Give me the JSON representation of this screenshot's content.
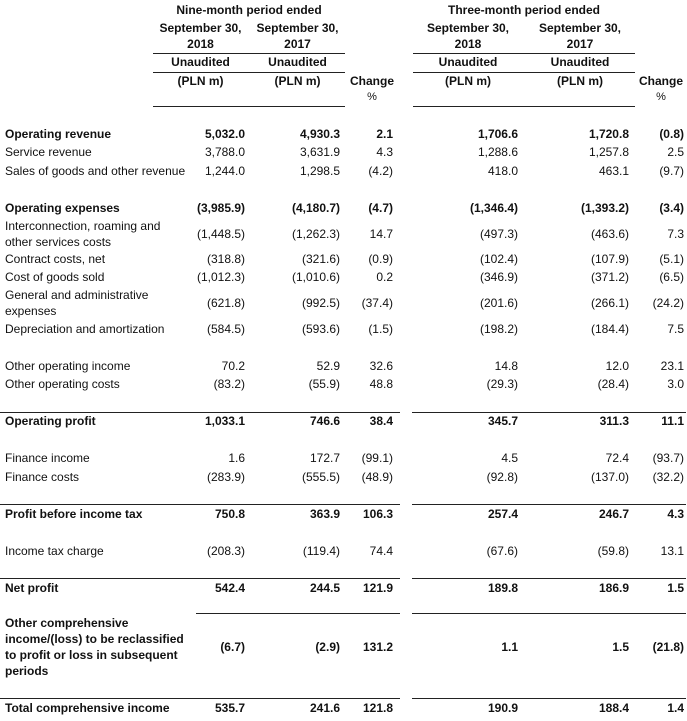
{
  "header": {
    "nine_month": {
      "title": "Nine-month period ended",
      "col_2018": "September 30,\n2018",
      "col_2017": "September 30,\n2017",
      "audit": "Unaudited",
      "unit": "(PLN m)",
      "change": "Change",
      "change_unit": "%"
    },
    "three_month": {
      "title": "Three-month period ended",
      "col_2018": "September 30,\n2018",
      "col_2017": "September 30,\n2017",
      "audit": "Unaudited",
      "unit": "(PLN m)",
      "change": "Change",
      "change_unit": "%"
    }
  },
  "rows": [
    {
      "label": "Operating revenue",
      "bold": true,
      "values": [
        "5,032.0",
        "4,930.3",
        "2.1",
        "1,706.6",
        "1,720.8",
        "(0.8)"
      ]
    },
    {
      "label": "Service revenue",
      "bold": false,
      "values": [
        "3,788.0",
        "3,631.9",
        "4.3",
        "1,288.6",
        "1,257.8",
        "2.5"
      ]
    },
    {
      "label": "Sales of goods and other revenue",
      "bold": false,
      "values": [
        "1,244.0",
        "1,298.5",
        "(4.2)",
        "418.0",
        "463.1",
        "(9.7)"
      ]
    },
    {
      "label": "Operating expenses",
      "bold": true,
      "values": [
        "(3,985.9)",
        "(4,180.7)",
        "(4.7)",
        "(1,346.4)",
        "(1,393.2)",
        "(3.4)"
      ]
    },
    {
      "label": "Interconnection, roaming and\nother services costs",
      "bold": false,
      "values": [
        "(1,448.5)",
        "(1,262.3)",
        "14.7",
        "(497.3)",
        "(463.6)",
        "7.3"
      ]
    },
    {
      "label": "Contract costs, net",
      "bold": false,
      "values": [
        "(318.8)",
        "(321.6)",
        "(0.9)",
        "(102.4)",
        "(107.9)",
        "(5.1)"
      ]
    },
    {
      "label": "Cost of goods sold",
      "bold": false,
      "values": [
        "(1,012.3)",
        "(1,010.6)",
        "0.2",
        "(346.9)",
        "(371.2)",
        "(6.5)"
      ]
    },
    {
      "label": "General and administrative\nexpenses",
      "bold": false,
      "values": [
        "(621.8)",
        "(992.5)",
        "(37.4)",
        "(201.6)",
        "(266.1)",
        "(24.2)"
      ]
    },
    {
      "label": "Depreciation and amortization",
      "bold": false,
      "values": [
        "(584.5)",
        "(593.6)",
        "(1.5)",
        "(198.2)",
        "(184.4)",
        "7.5"
      ]
    },
    {
      "label": "Other operating income",
      "bold": false,
      "values": [
        "70.2",
        "52.9",
        "32.6",
        "14.8",
        "12.0",
        "23.1"
      ]
    },
    {
      "label": "Other operating costs",
      "bold": false,
      "values": [
        "(83.2)",
        "(55.9)",
        "48.8",
        "(29.3)",
        "(28.4)",
        "3.0"
      ]
    },
    {
      "label": "Operating profit",
      "bold": true,
      "values": [
        "1,033.1",
        "746.6",
        "38.4",
        "345.7",
        "311.3",
        "11.1"
      ]
    },
    {
      "label": "Finance income",
      "bold": false,
      "values": [
        "1.6",
        "172.7",
        "(99.1)",
        "4.5",
        "72.4",
        "(93.7)"
      ]
    },
    {
      "label": "Finance costs",
      "bold": false,
      "values": [
        "(283.9)",
        "(555.5)",
        "(48.9)",
        "(92.8)",
        "(137.0)",
        "(32.2)"
      ]
    },
    {
      "label": "Profit before income tax",
      "bold": true,
      "values": [
        "750.8",
        "363.9",
        "106.3",
        "257.4",
        "246.7",
        "4.3"
      ]
    },
    {
      "label": "Income tax charge",
      "bold": false,
      "values": [
        "(208.3)",
        "(119.4)",
        "74.4",
        "(67.6)",
        "(59.8)",
        "13.1"
      ]
    },
    {
      "label": "Net profit",
      "bold": true,
      "values": [
        "542.4",
        "244.5",
        "121.9",
        "189.8",
        "186.9",
        "1.5"
      ]
    },
    {
      "label": "Other comprehensive\nincome/(loss) to be reclassified\nto profit or loss in subsequent\nperiods",
      "bold": true,
      "values": [
        "(6.7)",
        "(2.9)",
        "131.2",
        "1.1",
        "1.5",
        "(21.8)"
      ]
    },
    {
      "label": "Total comprehensive income",
      "bold": true,
      "values": [
        "535.7",
        "241.6",
        "121.8",
        "190.9",
        "188.4",
        "1.4"
      ]
    }
  ]
}
